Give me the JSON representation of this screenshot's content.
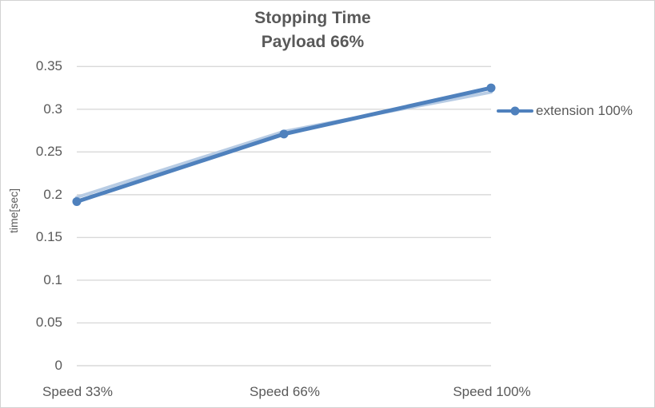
{
  "chart_data": {
    "type": "line",
    "title": "Stopping Time",
    "subtitle": "Payload 66%",
    "categories": [
      "Speed 33%",
      "Speed 66%",
      "Speed 100%"
    ],
    "series": [
      {
        "name": "extension 100%",
        "values": [
          0.192,
          0.271,
          0.325
        ],
        "color": "#4F81BD",
        "marker": "circle"
      }
    ],
    "halo_series": {
      "values": [
        0.197,
        0.274,
        0.32
      ],
      "color": "#B8CCE4"
    },
    "ylabel": "time[sec]",
    "ylim": [
      0,
      0.35
    ],
    "ytick_labels": [
      "0",
      "0.05",
      "0.1",
      "0.15",
      "0.2",
      "0.25",
      "0.3",
      "0.35"
    ],
    "yticks": [
      0,
      0.05,
      0.1,
      0.15,
      0.2,
      0.25,
      0.3,
      0.35
    ],
    "grid": true,
    "legend": {
      "position": "right",
      "entries": [
        "extension 100%"
      ]
    },
    "colors": {
      "grid": "#D9D9D9",
      "text": "#595959",
      "background": "#FFFFFF"
    }
  }
}
